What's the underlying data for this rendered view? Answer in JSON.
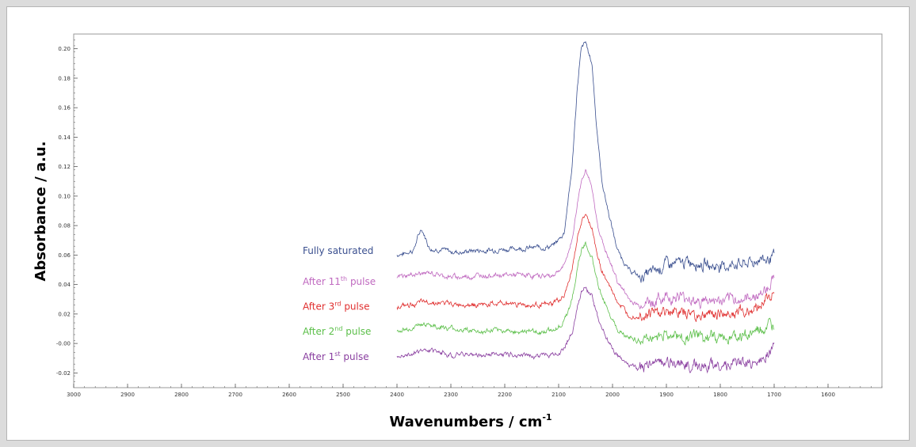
{
  "chart_data": {
    "type": "line",
    "xlabel": "Wavenumbers / cm",
    "xlabel_sup": "-1",
    "ylabel": "Absorbance / a.u.",
    "xlim": [
      3000,
      1500
    ],
    "ylim": [
      -0.03,
      0.21
    ],
    "x_reversed": true,
    "x_ticks": [
      "3000",
      "2900",
      "2800",
      "2700",
      "2600",
      "2500",
      "2400",
      "2300",
      "2200",
      "2100",
      "2000",
      "1900",
      "1800",
      "1700",
      "1600"
    ],
    "y_ticks": [
      "0.20",
      "0.18",
      "0.16",
      "0.14",
      "0.12",
      "0.10",
      "0.08",
      "0.06",
      "0.04",
      "0.02",
      "-0.00",
      "-0.02"
    ],
    "legend_placement": "inline-left-of-curves",
    "series": [
      {
        "name": "Fully saturated",
        "label": {
          "pre": "Fully saturated",
          "sup": "",
          "post": ""
        },
        "color": "#3a4f8f",
        "x": [
          2400,
          2370,
          2355,
          2340,
          2300,
          2250,
          2200,
          2150,
          2110,
          2090,
          2075,
          2065,
          2058,
          2050,
          2045,
          2038,
          2030,
          2020,
          2005,
          1990,
          1970,
          1950,
          1930,
          1900,
          1850,
          1800,
          1750,
          1720,
          1700
        ],
        "y": [
          0.06,
          0.063,
          0.078,
          0.065,
          0.062,
          0.063,
          0.064,
          0.065,
          0.066,
          0.075,
          0.12,
          0.175,
          0.2,
          0.205,
          0.198,
          0.19,
          0.15,
          0.11,
          0.085,
          0.062,
          0.05,
          0.045,
          0.048,
          0.055,
          0.055,
          0.053,
          0.055,
          0.058,
          0.06
        ]
      },
      {
        "name": "After 11th pulse",
        "label": {
          "pre": "After 11",
          "sup": "th",
          "post": " pulse"
        },
        "color": "#c06ac0",
        "x": [
          2400,
          2350,
          2300,
          2250,
          2200,
          2150,
          2110,
          2090,
          2075,
          2065,
          2058,
          2050,
          2045,
          2038,
          2030,
          2020,
          2005,
          1990,
          1970,
          1950,
          1930,
          1900,
          1850,
          1800,
          1750,
          1720,
          1700
        ],
        "y": [
          0.045,
          0.048,
          0.045,
          0.046,
          0.047,
          0.046,
          0.046,
          0.052,
          0.07,
          0.095,
          0.11,
          0.118,
          0.112,
          0.105,
          0.085,
          0.07,
          0.055,
          0.042,
          0.03,
          0.025,
          0.028,
          0.032,
          0.03,
          0.028,
          0.03,
          0.035,
          0.045
        ]
      },
      {
        "name": "After 3rd pulse",
        "label": {
          "pre": "After 3",
          "sup": "rd",
          "post": " pulse"
        },
        "color": "#e03030",
        "x": [
          2400,
          2350,
          2300,
          2250,
          2200,
          2150,
          2110,
          2090,
          2075,
          2065,
          2058,
          2050,
          2045,
          2038,
          2030,
          2020,
          2005,
          1990,
          1970,
          1950,
          1930,
          1900,
          1850,
          1800,
          1750,
          1720,
          1700
        ],
        "y": [
          0.025,
          0.028,
          0.027,
          0.026,
          0.027,
          0.026,
          0.027,
          0.032,
          0.05,
          0.072,
          0.082,
          0.088,
          0.082,
          0.078,
          0.062,
          0.05,
          0.038,
          0.028,
          0.02,
          0.018,
          0.02,
          0.022,
          0.02,
          0.02,
          0.022,
          0.028,
          0.035
        ]
      },
      {
        "name": "After 2nd pulse",
        "label": {
          "pre": "After 2",
          "sup": "nd",
          "post": " pulse"
        },
        "color": "#5cbf4a",
        "x": [
          2400,
          2350,
          2300,
          2250,
          2200,
          2150,
          2110,
          2090,
          2075,
          2065,
          2058,
          2050,
          2045,
          2038,
          2030,
          2020,
          2005,
          1990,
          1970,
          1950,
          1930,
          1900,
          1850,
          1800,
          1750,
          1720,
          1700
        ],
        "y": [
          0.008,
          0.013,
          0.01,
          0.008,
          0.009,
          0.008,
          0.009,
          0.014,
          0.03,
          0.052,
          0.063,
          0.068,
          0.062,
          0.058,
          0.044,
          0.032,
          0.02,
          0.01,
          0.004,
          0.002,
          0.004,
          0.006,
          0.004,
          0.004,
          0.006,
          0.01,
          0.01
        ]
      },
      {
        "name": "After 1st pulse",
        "label": {
          "pre": "After 1",
          "sup": "st",
          "post": " pulse"
        },
        "color": "#8a3fa0",
        "x": [
          2400,
          2350,
          2300,
          2250,
          2200,
          2150,
          2110,
          2090,
          2075,
          2065,
          2058,
          2050,
          2045,
          2038,
          2030,
          2020,
          2005,
          1990,
          1970,
          1950,
          1930,
          1900,
          1850,
          1800,
          1750,
          1720,
          1700
        ],
        "y": [
          -0.008,
          -0.005,
          -0.007,
          -0.008,
          -0.007,
          -0.008,
          -0.008,
          -0.004,
          0.008,
          0.025,
          0.034,
          0.039,
          0.035,
          0.032,
          0.02,
          0.01,
          0.0,
          -0.01,
          -0.015,
          -0.017,
          -0.015,
          -0.012,
          -0.015,
          -0.016,
          -0.014,
          -0.01,
          -0.005
        ]
      }
    ]
  }
}
